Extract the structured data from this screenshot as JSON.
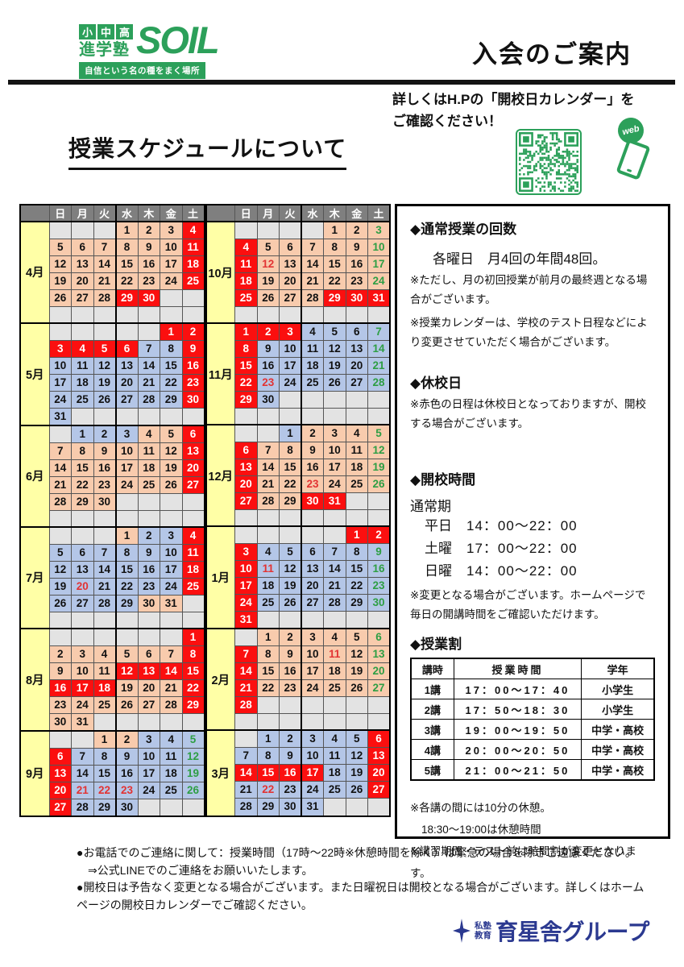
{
  "header": {
    "logo": {
      "grades": [
        "小",
        "中",
        "高"
      ],
      "type": "進学塾",
      "wordmark": "SOIL",
      "tagline": "自信という名の種をまく場所"
    },
    "title": "入会のご案内"
  },
  "subheader": {
    "hp_note": [
      "詳しくはH.Pの「開校日カレンダー」を",
      "ご確認ください！"
    ],
    "web_label": "web",
    "heading": "授業スケジュールについて"
  },
  "calendar": {
    "day_headers": [
      "日",
      "月",
      "火",
      "水",
      "木",
      "金",
      "土"
    ],
    "legend": {
      "p": "peach-open",
      "b": "blue-open",
      "r": "red-closed",
      "g": "green-saturday-open"
    },
    "tables": [
      {
        "name": "april-to-september",
        "months": [
          {
            "label": "4月",
            "weeks": [
              [
                "",
                "",
                "",
                "1p",
                "2p",
                "3p",
                "4r"
              ],
              [
                "5p",
                "6p",
                "7p",
                "8p",
                "9p",
                "10p",
                "11r"
              ],
              [
                "12p",
                "13p",
                "14p",
                "15p",
                "16p",
                "17p",
                "18r"
              ],
              [
                "19p",
                "20p",
                "21p",
                "22p",
                "23p",
                "24p",
                "25r"
              ],
              [
                "26p",
                "27p",
                "28p",
                "29r",
                "30r",
                "",
                ""
              ],
              [
                "",
                "",
                "",
                "",
                "",
                "",
                ""
              ]
            ]
          },
          {
            "label": "5月",
            "weeks": [
              [
                "",
                "",
                "",
                "",
                "",
                "1r",
                "2r"
              ],
              [
                "3r",
                "4r",
                "5r",
                "6r",
                "7b",
                "8b",
                "9r"
              ],
              [
                "10b",
                "11b",
                "12b",
                "13b",
                "14b",
                "15b",
                "16r"
              ],
              [
                "17b",
                "18b",
                "19b",
                "20b",
                "21b",
                "22b",
                "23r"
              ],
              [
                "24b",
                "25b",
                "26b",
                "27b",
                "28b",
                "29b",
                "30r"
              ],
              [
                "31b",
                "",
                "",
                "",
                "",
                "",
                ""
              ]
            ]
          },
          {
            "label": "6月",
            "weeks": [
              [
                "",
                "1b",
                "2b",
                "3b",
                "4p",
                "5p",
                "6r"
              ],
              [
                "7p",
                "8p",
                "9p",
                "10p",
                "11p",
                "12p",
                "13r"
              ],
              [
                "14p",
                "15p",
                "16p",
                "17p",
                "18p",
                "19p",
                "20r"
              ],
              [
                "21p",
                "22p",
                "23p",
                "24p",
                "25p",
                "26p",
                "27r"
              ],
              [
                "28p",
                "29p",
                "30p",
                "",
                "",
                "",
                ""
              ],
              [
                "",
                "",
                "",
                "",
                "",
                "",
                ""
              ]
            ]
          },
          {
            "label": "7月",
            "weeks": [
              [
                "",
                "",
                "",
                "1p",
                "2b",
                "3b",
                "4r"
              ],
              [
                "5b",
                "6b",
                "7b",
                "8b",
                "9b",
                "10b",
                "11r"
              ],
              [
                "12b",
                "13b",
                "14b",
                "15b",
                "16b",
                "17b",
                "18r"
              ],
              [
                "19b",
                "20br",
                "21b",
                "22b",
                "23b",
                "24b",
                "25r"
              ],
              [
                "26b",
                "27b",
                "28b",
                "29b",
                "30p",
                "31p",
                ""
              ],
              [
                "",
                "",
                "",
                "",
                "",
                "",
                ""
              ]
            ]
          },
          {
            "label": "8月",
            "weeks": [
              [
                "",
                "",
                "",
                "",
                "",
                "",
                "1r"
              ],
              [
                "2p",
                "3p",
                "4p",
                "5p",
                "6p",
                "7p",
                "8r"
              ],
              [
                "9p",
                "10p",
                "11p",
                "12r",
                "13r",
                "14r",
                "15r"
              ],
              [
                "16r",
                "17r",
                "18r",
                "19p",
                "20p",
                "21p",
                "22r"
              ],
              [
                "23p",
                "24p",
                "25p",
                "26p",
                "27p",
                "28p",
                "29r"
              ],
              [
                "30p",
                "31p",
                "",
                "",
                "",
                "",
                ""
              ]
            ]
          },
          {
            "label": "9月",
            "weeks": [
              [
                "",
                "",
                "1p",
                "2p",
                "3b",
                "4b",
                "5bg"
              ],
              [
                "6r",
                "7b",
                "8b",
                "9b",
                "10b",
                "11b",
                "12bg"
              ],
              [
                "13r",
                "14b",
                "15b",
                "16b",
                "17b",
                "18b",
                "19bg"
              ],
              [
                "20r",
                "21br",
                "22br",
                "23br",
                "24b",
                "25b",
                "26bg"
              ],
              [
                "27r",
                "28b",
                "29b",
                "30b",
                "",
                "",
                ""
              ]
            ]
          }
        ]
      },
      {
        "name": "october-to-march",
        "months": [
          {
            "label": "10月",
            "weeks": [
              [
                "",
                "",
                "",
                "",
                "1p",
                "2p",
                "3pg"
              ],
              [
                "4r",
                "5p",
                "6p",
                "7p",
                "8p",
                "9p",
                "10pg"
              ],
              [
                "11r",
                "12pr",
                "13p",
                "14p",
                "15p",
                "16p",
                "17pg"
              ],
              [
                "18r",
                "19p",
                "20p",
                "21p",
                "22p",
                "23p",
                "24pg"
              ],
              [
                "25r",
                "26p",
                "27p",
                "28p",
                "29r",
                "30r",
                "31r"
              ],
              [
                "",
                "",
                "",
                "",
                "",
                "",
                ""
              ]
            ]
          },
          {
            "label": "11月",
            "weeks": [
              [
                "1r",
                "2r",
                "3r",
                "4b",
                "5b",
                "6b",
                "7bg"
              ],
              [
                "8r",
                "9b",
                "10b",
                "11b",
                "12b",
                "13b",
                "14bg"
              ],
              [
                "15r",
                "16b",
                "17b",
                "18b",
                "19b",
                "20b",
                "21bg"
              ],
              [
                "22r",
                "23br",
                "24b",
                "25b",
                "26b",
                "27b",
                "28bg"
              ],
              [
                "29r",
                "30b",
                "",
                "",
                "",
                "",
                ""
              ],
              [
                "",
                "",
                "",
                "",
                "",
                "",
                ""
              ]
            ]
          },
          {
            "label": "12月",
            "weeks": [
              [
                "",
                "",
                "1b",
                "2p",
                "3p",
                "4p",
                "5pg"
              ],
              [
                "6r",
                "7p",
                "8p",
                "9p",
                "10p",
                "11p",
                "12pg"
              ],
              [
                "13r",
                "14p",
                "15p",
                "16p",
                "17p",
                "18p",
                "19pg"
              ],
              [
                "20r",
                "21p",
                "22p",
                "23pr",
                "24p",
                "25p",
                "26pg"
              ],
              [
                "27r",
                "28p",
                "29p",
                "30r",
                "31r",
                "",
                ""
              ],
              [
                "",
                "",
                "",
                "",
                "",
                "",
                ""
              ]
            ]
          },
          {
            "label": "1月",
            "weeks": [
              [
                "",
                "",
                "",
                "",
                "",
                "1r",
                "2r"
              ],
              [
                "3r",
                "4b",
                "5b",
                "6b",
                "7b",
                "8b",
                "9bg"
              ],
              [
                "10r",
                "11br",
                "12b",
                "13b",
                "14b",
                "15b",
                "16bg"
              ],
              [
                "17r",
                "18b",
                "19b",
                "20b",
                "21b",
                "22b",
                "23bg"
              ],
              [
                "24r",
                "25b",
                "26b",
                "27b",
                "28b",
                "29b",
                "30bg"
              ],
              [
                "31r",
                "",
                "",
                "",
                "",
                "",
                ""
              ]
            ]
          },
          {
            "label": "2月",
            "weeks": [
              [
                "",
                "1p",
                "2p",
                "3p",
                "4p",
                "5p",
                "6pg"
              ],
              [
                "7r",
                "8p",
                "9p",
                "10p",
                "11pr",
                "12p",
                "13pg"
              ],
              [
                "14r",
                "15p",
                "16p",
                "17p",
                "18p",
                "19p",
                "20pg"
              ],
              [
                "21r",
                "22p",
                "23p",
                "24p",
                "25p",
                "26p",
                "27pg"
              ],
              [
                "28r",
                "",
                "",
                "",
                "",
                "",
                ""
              ],
              [
                "",
                "",
                "",
                "",
                "",
                "",
                ""
              ]
            ]
          },
          {
            "label": "3月",
            "weeks": [
              [
                "",
                "1b",
                "2b",
                "3b",
                "4b",
                "5b",
                "6r"
              ],
              [
                "7b",
                "8b",
                "9b",
                "10b",
                "11b",
                "12b",
                "13r"
              ],
              [
                "14r",
                "15r",
                "16r",
                "17r",
                "18b",
                "19b",
                "20r"
              ],
              [
                "21b",
                "22br",
                "23b",
                "24b",
                "25b",
                "26b",
                "27r"
              ],
              [
                "28b",
                "29b",
                "30b",
                "31b",
                "",
                "",
                ""
              ]
            ]
          }
        ]
      }
    ]
  },
  "info_panel": {
    "sections": {
      "kaisu": {
        "title": "◆通常授業の回数",
        "line": "各曜日　月4回の年間48回。",
        "notes": [
          "※ただし、月の初回授業が前月の最終週となる場合がございます。",
          "※授業カレンダーは、学校のテスト日程などにより変更させていただく場合がございます。"
        ]
      },
      "kyuko": {
        "title": "◆休校日",
        "note": "※赤色の日程は休校日となっておりますが、開校する場合がございます。"
      },
      "kaiko": {
        "title": "◆開校時間",
        "subtitle": "通常期",
        "hours": [
          {
            "label": "平日",
            "time": "14：00～22：00"
          },
          {
            "label": "土曜",
            "time": "17：00～22：00"
          },
          {
            "label": "日曜",
            "time": "14：00～22：00"
          }
        ],
        "note": "※変更となる場合がございます。ホームページで毎日の開講時間をご確認いただけます。"
      },
      "jugyowari": {
        "title": "◆授業割",
        "headers": [
          "講時",
          "授業時間",
          "学年"
        ],
        "rows": [
          [
            "1講",
            "17：00～17：40",
            "小学生"
          ],
          [
            "2講",
            "17：50～18：30",
            "小学生"
          ],
          [
            "3講",
            "19：00～19：50",
            "中学・高校"
          ],
          [
            "4講",
            "20：00～20：50",
            "中学・高校"
          ],
          [
            "5講",
            "21：00～21：50",
            "中学・高校"
          ]
        ],
        "notes": [
          "※各講の間には10分の休憩。",
          "18:30～19:00は休憩時間",
          "※講習期間・テスト前は時間割が変更となります。"
        ]
      }
    }
  },
  "footer": {
    "notes": [
      "●お電話でのご連絡に関して：授業時間（17時～22時※休憩時間を除く）は緊急の場合を除きご遠慮ください。",
      "⇒公式LINEでのご連絡をお願いいたします。",
      "●開校日は予告なく変更となる場合がございます。また日曜祝日は開校となる場合がございます。詳しくはホームページの開校日カレンダーでご確認ください。"
    ],
    "logo": {
      "tag1": "私塾",
      "tag2": "教育",
      "name": "育星舎グループ"
    }
  },
  "colors": {
    "brand_green": "#2ca05a",
    "navy": "#2b3990",
    "holiday_red": "#fb0f0f",
    "saturday_green_text": "#2e9e44",
    "holiday_red_text": "#e23333",
    "peach_cell": "#f8cbad",
    "blue_cell": "#b4c6e7",
    "month_yellow": "#ffffa6",
    "header_gray": "#7f7f7f"
  }
}
